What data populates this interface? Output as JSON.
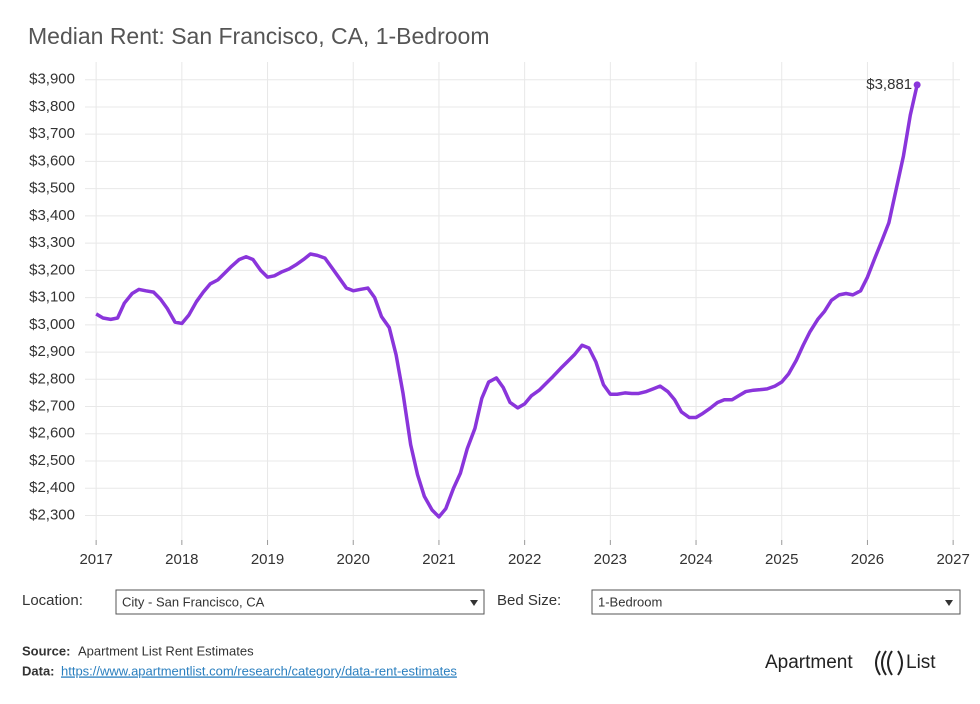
{
  "chart_data": {
    "type": "line",
    "title": "Median Rent: San Francisco, CA, 1-Bedroom",
    "x": [
      2017,
      2017.08,
      2017.17,
      2017.25,
      2017.33,
      2017.42,
      2017.5,
      2017.58,
      2017.67,
      2017.75,
      2017.83,
      2017.92,
      2018,
      2018.08,
      2018.17,
      2018.25,
      2018.33,
      2018.42,
      2018.5,
      2018.58,
      2018.67,
      2018.75,
      2018.83,
      2018.92,
      2019,
      2019.08,
      2019.17,
      2019.25,
      2019.33,
      2019.42,
      2019.5,
      2019.58,
      2019.67,
      2019.75,
      2019.83,
      2019.92,
      2020,
      2020.08,
      2020.17,
      2020.25,
      2020.33,
      2020.42,
      2020.5,
      2020.58,
      2020.67,
      2020.75,
      2020.83,
      2020.92,
      2021,
      2021.08,
      2021.17,
      2021.25,
      2021.33,
      2021.42,
      2021.5,
      2021.58,
      2021.67,
      2021.75,
      2021.83,
      2021.92,
      2022,
      2022.08,
      2022.17,
      2022.25,
      2022.33,
      2022.42,
      2022.5,
      2022.58,
      2022.67,
      2022.75,
      2022.83,
      2022.92,
      2023,
      2023.08,
      2023.17,
      2023.25,
      2023.33,
      2023.42,
      2023.5,
      2023.58,
      2023.67,
      2023.75,
      2023.83,
      2023.92,
      2024,
      2024.08,
      2024.17,
      2024.25,
      2024.33,
      2024.42,
      2024.5,
      2024.58,
      2024.67,
      2024.75,
      2024.83,
      2024.92,
      2025,
      2025.08,
      2025.17,
      2025.25,
      2025.33,
      2025.42,
      2025.5,
      2025.58,
      2025.67,
      2025.75,
      2025.83,
      2025.92,
      2026,
      2026.08,
      2026.17,
      2026.25,
      2026.33,
      2026.42,
      2026.5,
      2026.58
    ],
    "values": [
      3040,
      3025,
      3020,
      3025,
      3080,
      3115,
      3130,
      3125,
      3120,
      3095,
      3060,
      3010,
      3005,
      3035,
      3085,
      3120,
      3150,
      3165,
      3190,
      3215,
      3240,
      3250,
      3240,
      3200,
      3175,
      3180,
      3195,
      3205,
      3220,
      3240,
      3260,
      3255,
      3245,
      3210,
      3175,
      3135,
      3125,
      3130,
      3135,
      3100,
      3030,
      2990,
      2890,
      2750,
      2560,
      2450,
      2370,
      2320,
      2295,
      2325,
      2400,
      2455,
      2545,
      2620,
      2730,
      2790,
      2805,
      2770,
      2715,
      2695,
      2710,
      2740,
      2760,
      2785,
      2810,
      2840,
      2865,
      2890,
      2925,
      2915,
      2865,
      2780,
      2745,
      2745,
      2750,
      2748,
      2748,
      2755,
      2765,
      2775,
      2755,
      2725,
      2680,
      2660,
      2660,
      2675,
      2695,
      2715,
      2725,
      2725,
      2740,
      2755,
      2760,
      2762,
      2765,
      2775,
      2790,
      2820,
      2870,
      2925,
      2975,
      3020,
      3050,
      3090,
      3110,
      3115,
      3110,
      3125,
      3175,
      3240,
      3310,
      3375,
      3490,
      3620,
      3770,
      3881
    ],
    "value_labels": [
      null,
      null,
      null,
      null,
      null,
      null,
      null,
      null,
      null,
      null,
      null,
      null,
      null,
      null,
      null,
      null,
      null,
      null,
      null,
      null,
      null,
      null,
      null,
      null,
      null,
      null,
      null,
      null,
      null,
      null,
      null,
      null,
      null,
      null,
      null,
      null,
      null,
      null,
      null,
      null,
      null,
      null,
      null,
      null,
      null,
      null,
      null,
      null,
      null,
      null,
      null,
      null,
      null,
      null,
      null,
      null,
      null,
      null,
      null,
      null,
      null,
      null,
      null,
      null,
      null,
      null,
      null,
      null,
      null,
      null,
      null,
      null,
      null,
      null,
      null,
      null,
      null,
      null,
      null,
      null,
      null,
      null,
      null,
      null,
      null,
      null,
      null,
      null,
      null,
      null,
      null,
      null,
      null,
      null,
      null,
      null,
      null,
      null,
      null,
      null,
      null,
      null,
      null,
      null,
      null,
      null,
      null,
      null,
      null,
      null,
      null,
      null,
      null,
      null,
      null,
      "$3,881"
    ],
    "color": "#8a35db",
    "xlim": [
      2016.87,
      2027.08
    ],
    "xticks": [
      2017,
      2018,
      2019,
      2020,
      2021,
      2022,
      2023,
      2024,
      2025,
      2026,
      2027
    ],
    "ylim": [
      2210,
      3965
    ],
    "yticks": [
      {
        "value": 2300,
        "label": "$2,300"
      },
      {
        "value": 2400,
        "label": "$2,400"
      },
      {
        "value": 2500,
        "label": "$2,500"
      },
      {
        "value": 2600,
        "label": "$2,600"
      },
      {
        "value": 2700,
        "label": "$2,700"
      },
      {
        "value": 2800,
        "label": "$2,800"
      },
      {
        "value": 2900,
        "label": "$2,900"
      },
      {
        "value": 3000,
        "label": "$3,000"
      },
      {
        "value": 3100,
        "label": "$3,100"
      },
      {
        "value": 3200,
        "label": "$3,200"
      },
      {
        "value": 3300,
        "label": "$3,300"
      },
      {
        "value": 3400,
        "label": "$3,400"
      },
      {
        "value": 3500,
        "label": "$3,500"
      },
      {
        "value": 3600,
        "label": "$3,600"
      },
      {
        "value": 3700,
        "label": "$3,700"
      },
      {
        "value": 3800,
        "label": "$3,800"
      },
      {
        "value": 3900,
        "label": "$3,900"
      }
    ],
    "grid": true
  },
  "controls": {
    "location_label": "Location:",
    "location_value": "City - San Francisco, CA",
    "bed_label": "Bed Size:",
    "bed_value": "1-Bedroom"
  },
  "footer": {
    "source_label": "Source:",
    "source_text": "Apartment List Rent Estimates",
    "data_label": "Data:",
    "data_link": "https://www.apartmentlist.com/research/category/data-rent-estimates",
    "logo": "Apartment",
    "logo_2": "List"
  }
}
